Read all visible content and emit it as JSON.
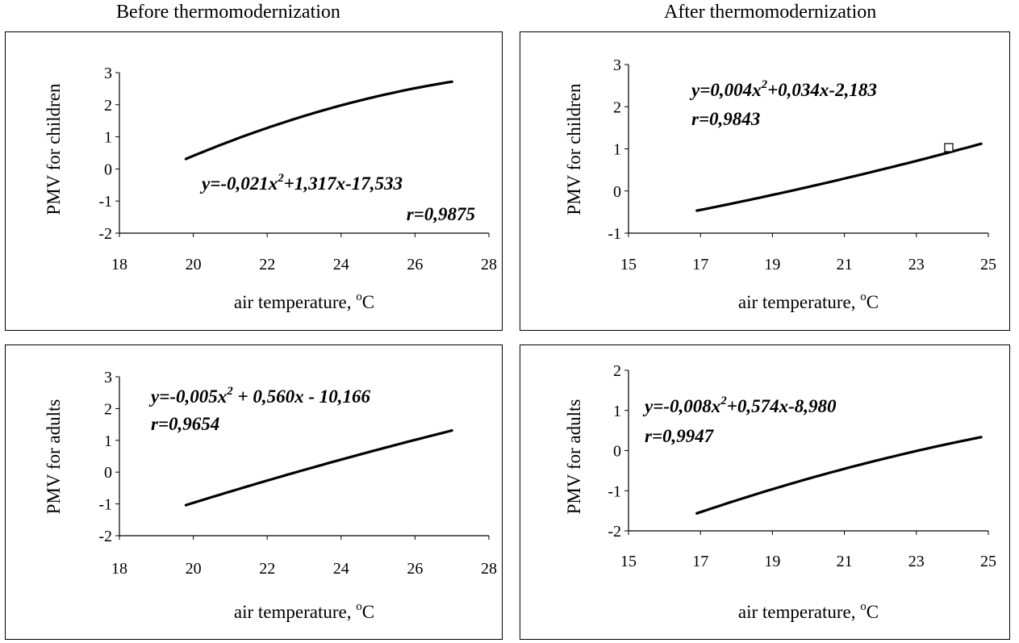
{
  "headers": {
    "left": "Before thermomodernization",
    "right": "After thermomodernization"
  },
  "chart_data": [
    {
      "type": "line",
      "ylabel": "PMV for children",
      "xlabel_main": "air temperature, ",
      "xlabel_sup": "o",
      "xlabel_end": "C",
      "xlim": [
        18,
        28
      ],
      "ylim": [
        -2,
        3
      ],
      "xticks": [
        "18",
        "20",
        "22",
        "24",
        "26",
        "28"
      ],
      "yticks": [
        "3",
        "2",
        "1",
        "0",
        "-1",
        "-2"
      ],
      "equation_pre": "y=-0,021x",
      "equation_sup": "2",
      "equation_post": "+1,317x-17,533",
      "r": "r=0,9875",
      "fit": {
        "a": -0.021,
        "b": 1.317,
        "c": -17.533,
        "x_start": 19.8,
        "x_end": 27.0
      },
      "markers": []
    },
    {
      "type": "line",
      "ylabel": "PMV for children",
      "xlabel_main": "air temperature, ",
      "xlabel_sup": "o",
      "xlabel_end": "C",
      "xlim": [
        15,
        25
      ],
      "ylim": [
        -1,
        3
      ],
      "xticks": [
        "15",
        "17",
        "19",
        "21",
        "23",
        "25"
      ],
      "yticks": [
        "3",
        "2",
        "1",
        "0",
        "-1"
      ],
      "equation_pre": "y=0,004x",
      "equation_sup": "2",
      "equation_post": "+0,034x-2,183",
      "r": "r=0,9843",
      "fit": {
        "a": 0.004,
        "b": 0.034,
        "c": -2.183,
        "x_start": 16.9,
        "x_end": 24.8
      },
      "markers": [
        {
          "x": 23.9,
          "y": 1.03
        }
      ]
    },
    {
      "type": "line",
      "ylabel": "PMV for adults",
      "xlabel_main": "air temperature, ",
      "xlabel_sup": "o",
      "xlabel_end": "C",
      "xlim": [
        18,
        28
      ],
      "ylim": [
        -2,
        3
      ],
      "xticks": [
        "18",
        "20",
        "22",
        "24",
        "26",
        "28"
      ],
      "yticks": [
        "3",
        "2",
        "1",
        "0",
        "-1",
        "-2"
      ],
      "equation_pre": "y=-0,005x",
      "equation_sup": "2",
      "equation_post": " + 0,560x - 10,166",
      "r": "r=0,9654",
      "fit": {
        "a": -0.005,
        "b": 0.56,
        "c": -10.166,
        "x_start": 19.8,
        "x_end": 27.0
      },
      "markers": []
    },
    {
      "type": "line",
      "ylabel": "PMV for adults",
      "xlabel_main": "air temperature, ",
      "xlabel_sup": "o",
      "xlabel_end": "C",
      "xlim": [
        15,
        25
      ],
      "ylim": [
        -2,
        2
      ],
      "xticks": [
        "15",
        "17",
        "19",
        "21",
        "23",
        "25"
      ],
      "yticks": [
        "2",
        "1",
        "0",
        "-1",
        "-2"
      ],
      "equation_pre": "y=-0,008x",
      "equation_sup": "2",
      "equation_post": "+0,574x-8,980",
      "r": "r=0,9947",
      "fit": {
        "a": -0.008,
        "b": 0.574,
        "c": -8.98,
        "x_start": 16.9,
        "x_end": 24.8
      },
      "markers": []
    }
  ]
}
